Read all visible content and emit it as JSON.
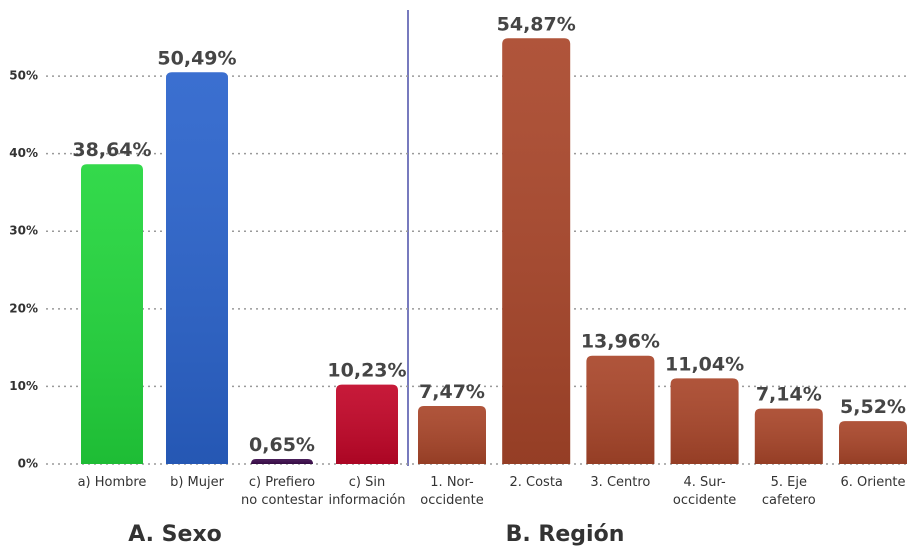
{
  "chart_data": [
    {
      "type": "bar",
      "title": "A. Sexo",
      "categories": [
        "a) Hombre",
        "b) Mujer",
        "c) Prefiero\nno contestar",
        "c) Sin\ninformación"
      ],
      "values": [
        38.64,
        50.49,
        0.65,
        10.23
      ],
      "value_labels": [
        "38,64%",
        "50,49%",
        "0,65%",
        "10,23%"
      ],
      "colors": [
        "#22d63c",
        "#2a63cc",
        "#3b0b4c",
        "#c20628"
      ],
      "ylim": [
        0,
        58
      ],
      "yticks": [
        {
          "value": 0,
          "label": "0%"
        },
        {
          "value": 10,
          "label": "10%"
        },
        {
          "value": 20,
          "label": "20%"
        },
        {
          "value": 30,
          "label": "30%"
        },
        {
          "value": 40,
          "label": "40%"
        },
        {
          "value": 50,
          "label": "50%"
        }
      ],
      "grid": true
    },
    {
      "type": "bar",
      "title": "B. Región",
      "categories": [
        "1. Nor-\noccidente",
        "2. Costa",
        "3. Centro",
        "4. Sur-\noccidente",
        "5. Eje\ncafetero",
        "6. Oriente"
      ],
      "values": [
        7.47,
        54.87,
        13.96,
        11.04,
        7.14,
        5.52
      ],
      "value_labels": [
        "7,47%",
        "54,87%",
        "13,96%",
        "11,04%",
        "7,14%",
        "5,52%"
      ],
      "colors": [
        "#a9462a",
        "#a9462a",
        "#a9462a",
        "#a9462a",
        "#a9462a",
        "#a9462a"
      ],
      "ylim": [
        0,
        58
      ]
    }
  ]
}
